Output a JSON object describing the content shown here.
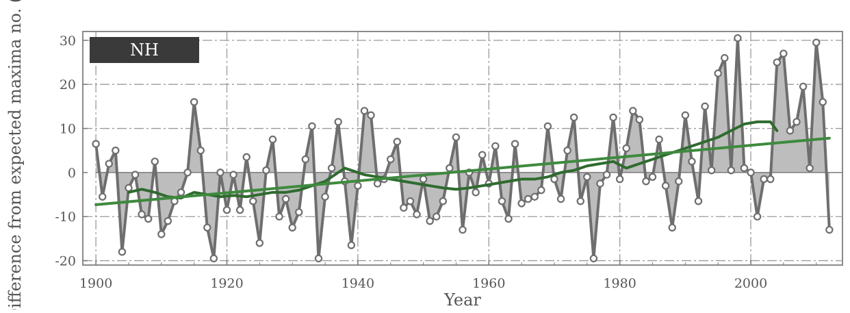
{
  "chart_data": {
    "type": "line",
    "title": "",
    "xlabel": "Year",
    "ylabel": "Difference from expected maxima no. (%)",
    "xlim": [
      1898,
      2014
    ],
    "ylim": [
      -21,
      32
    ],
    "xticks": [
      1900,
      1920,
      1940,
      1960,
      1980,
      2000
    ],
    "yticks": [
      -20,
      -10,
      0,
      10,
      20,
      30
    ],
    "grid": true,
    "legend": {
      "label": "NH",
      "placement": "top-left"
    },
    "colors": {
      "annual": "#6e6e6e",
      "fill": "#bdbdbd",
      "smooth": "#2f6b2f",
      "trend": "#3e8a3e",
      "legend_bg": "#3a3a3a",
      "grid": "#9a9a9a"
    },
    "series": [
      {
        "name": "",
        "style": "annual",
        "x": [
          1900,
          1901,
          1902,
          1903,
          1904,
          1905,
          1906,
          1907,
          1908,
          1909,
          1910,
          1911,
          1912,
          1913,
          1914,
          1915,
          1916,
          1917,
          1918,
          1919,
          1920,
          1921,
          1922,
          1923,
          1924,
          1925,
          1926,
          1927,
          1928,
          1929,
          1930,
          1931,
          1932,
          1933,
          1934,
          1935,
          1936,
          1937,
          1938,
          1939,
          1940,
          1941,
          1942,
          1943,
          1944,
          1945,
          1946,
          1947,
          1948,
          1949,
          1950,
          1951,
          1952,
          1953,
          1954,
          1955,
          1956,
          1957,
          1958,
          1959,
          1960,
          1961,
          1962,
          1963,
          1964,
          1965,
          1966,
          1967,
          1968,
          1969,
          1970,
          1971,
          1972,
          1973,
          1974,
          1975,
          1976,
          1977,
          1978,
          1979,
          1980,
          1981,
          1982,
          1983,
          1984,
          1985,
          1986,
          1987,
          1988,
          1989,
          1990,
          1991,
          1992,
          1993,
          1994,
          1995,
          1996,
          1997,
          1998,
          1999,
          2000,
          2001,
          2002,
          2003,
          2004,
          2005,
          2006,
          2007,
          2008,
          2009,
          2010,
          2011,
          2012
        ],
        "values": [
          6.5,
          -5.5,
          2,
          5,
          -18,
          -3.5,
          -0.5,
          -9.5,
          -10.5,
          2.5,
          -14,
          -11,
          -6.5,
          -4.5,
          0,
          16,
          5,
          -12.5,
          -19.5,
          0,
          -8.5,
          -0.5,
          -8.5,
          3.5,
          -6.5,
          -16,
          0.5,
          7.5,
          -10,
          -6,
          -12.5,
          -9,
          3,
          10.5,
          -19.5,
          -5.5,
          1,
          11.5,
          -2,
          -16.5,
          -3,
          14,
          13,
          -2.5,
          -1.5,
          3,
          7,
          -8,
          -6.5,
          -9.5,
          -1.5,
          -11,
          -10,
          -6.5,
          1,
          8,
          -13,
          0,
          -4.5,
          4,
          -2.5,
          6,
          -6.5,
          -10.5,
          6.5,
          -7,
          -6,
          -5.5,
          -4,
          10.5,
          -1.5,
          -6,
          5,
          12.5,
          -6.5,
          -1,
          -19.5,
          -2.5,
          -0.5,
          12.5,
          -1.5,
          5.5,
          14,
          12,
          -2,
          -1,
          7.5,
          -3,
          -12.5,
          -2,
          13,
          2.5,
          -6.5,
          15,
          0.5,
          22.5,
          26,
          0.5,
          30.5,
          1,
          0,
          -10,
          -1.5,
          -1.5,
          25,
          27,
          9.5,
          11.5,
          19.5,
          1,
          29.5,
          16,
          -13
        ]
      },
      {
        "name": "",
        "style": "smooth",
        "x": [
          1905,
          1907,
          1909,
          1911,
          1913,
          1915,
          1917,
          1919,
          1921,
          1923,
          1925,
          1927,
          1929,
          1931,
          1933,
          1935,
          1937,
          1938,
          1939,
          1941,
          1943,
          1945,
          1947,
          1949,
          1951,
          1953,
          1955,
          1957,
          1959,
          1961,
          1963,
          1965,
          1967,
          1969,
          1971,
          1973,
          1975,
          1977,
          1979,
          1981,
          1983,
          1985,
          1987,
          1989,
          1991,
          1993,
          1995,
          1997,
          1999,
          2001,
          2003,
          2004
        ],
        "values": [
          -4.5,
          -3.8,
          -4.5,
          -5.5,
          -5.8,
          -4.5,
          -5,
          -5.5,
          -5.2,
          -5.5,
          -5,
          -4.5,
          -4.5,
          -4,
          -3,
          -2,
          0,
          1,
          0.5,
          -0.5,
          -1,
          -1.5,
          -2,
          -2.5,
          -3,
          -3.5,
          -3.8,
          -3.5,
          -3,
          -2.5,
          -2,
          -1.5,
          -1.5,
          -1,
          0,
          0.5,
          1.5,
          2,
          2.5,
          1,
          2,
          3,
          4,
          5,
          6,
          7,
          8,
          9.5,
          11,
          11.5,
          11.5,
          9.5
        ]
      },
      {
        "name": "",
        "style": "trend",
        "x": [
          1900,
          2012
        ],
        "values": [
          -7.3,
          7.8
        ]
      }
    ]
  }
}
